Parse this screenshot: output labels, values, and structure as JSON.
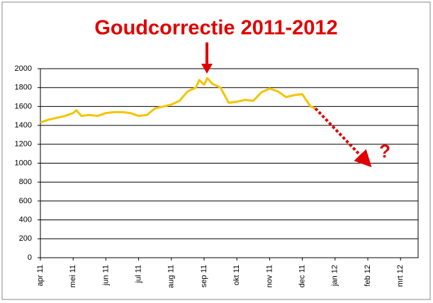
{
  "chart_data": {
    "type": "line",
    "title": "Goudcorrectie 2011-2012",
    "xlim": [
      0,
      11.5
    ],
    "xticks": [
      {
        "value": 0,
        "label": "apr 11"
      },
      {
        "value": 1,
        "label": "mei 11"
      },
      {
        "value": 2,
        "label": "jun 11"
      },
      {
        "value": 3,
        "label": "jul 11"
      },
      {
        "value": 4,
        "label": "aug 11"
      },
      {
        "value": 5,
        "label": "sep 11"
      },
      {
        "value": 6,
        "label": "okt 11"
      },
      {
        "value": 7,
        "label": "nov 11"
      },
      {
        "value": 8,
        "label": "dec 11"
      },
      {
        "value": 9,
        "label": "jan 12"
      },
      {
        "value": 10,
        "label": "feb 12"
      },
      {
        "value": 11,
        "label": "mrt 12"
      }
    ],
    "ylim": [
      0,
      2000
    ],
    "yticks": [
      0,
      200,
      400,
      600,
      800,
      1000,
      1200,
      1400,
      1600,
      1800,
      2000
    ],
    "grid": true,
    "series": [
      {
        "color": "#f5c400",
        "x": [
          0,
          0.25,
          0.5,
          0.75,
          1.0,
          1.1,
          1.25,
          1.5,
          1.75,
          2.0,
          2.25,
          2.5,
          2.75,
          3.0,
          3.25,
          3.5,
          3.75,
          4.0,
          4.25,
          4.5,
          4.75,
          4.85,
          5.0,
          5.1,
          5.25,
          5.5,
          5.75,
          6.0,
          6.25,
          6.5,
          6.75,
          7.0,
          7.25,
          7.5,
          7.75,
          8.0,
          8.25,
          8.4
        ],
        "values": [
          1430,
          1460,
          1480,
          1500,
          1530,
          1560,
          1500,
          1510,
          1500,
          1530,
          1540,
          1540,
          1530,
          1500,
          1510,
          1580,
          1600,
          1620,
          1660,
          1760,
          1800,
          1880,
          1830,
          1900,
          1840,
          1800,
          1640,
          1650,
          1670,
          1660,
          1750,
          1790,
          1760,
          1700,
          1720,
          1730,
          1600,
          1580
        ]
      },
      {
        "color": "#e00000",
        "style": "dotted",
        "x": [
          8.4,
          10
        ],
        "values": [
          1580,
          1000
        ]
      }
    ],
    "annotation": {
      "text": "?",
      "x": 10.35,
      "y": 1110
    }
  }
}
